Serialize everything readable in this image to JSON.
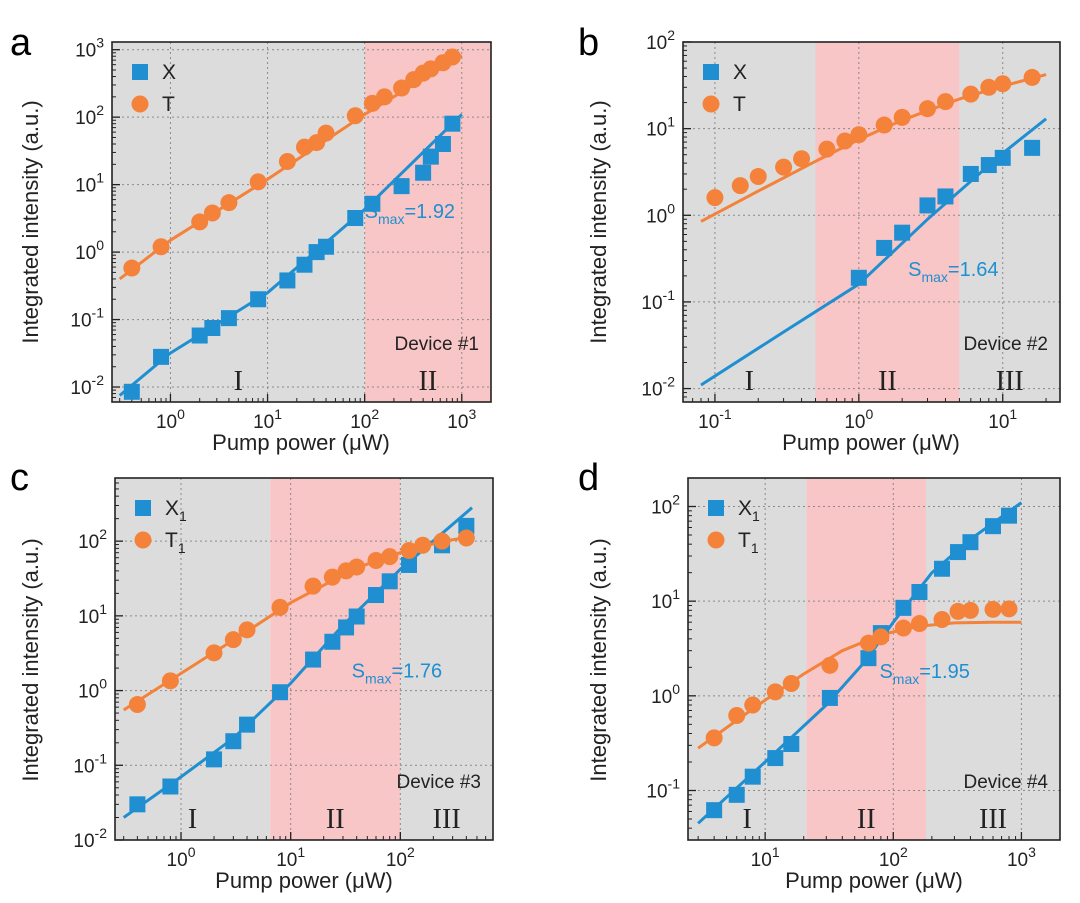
{
  "colors": {
    "X": "#1f8fd1",
    "T": "#f4823a",
    "gray": "#dcdcdc",
    "pink": "#f8c6c6"
  },
  "chart_data": [
    {
      "type": "scatter",
      "panel": "a",
      "xlabel": "Pump power (μW)",
      "ylabel": "Integrated intensity (a.u.)",
      "xscale": "log",
      "yscale": "log",
      "xlim": [
        0.25,
        2000
      ],
      "ylim": [
        0.006,
        1300
      ],
      "xtick_exps": [
        0,
        1,
        2,
        3
      ],
      "ytick_exps": [
        -2,
        -1,
        0,
        1,
        2,
        3
      ],
      "grid": true,
      "legend_position": "top-left",
      "regions": [
        {
          "label": "I",
          "from": 0.25,
          "to": 100,
          "fill": "gray"
        },
        {
          "label": "II",
          "from": 100,
          "to": 2000,
          "fill": "pink"
        }
      ],
      "device": "Device #1",
      "slope": {
        "sub": "max",
        "value": "=1.92",
        "x": 100,
        "y": 3.2
      },
      "series": [
        {
          "name": "X",
          "sub": "",
          "marker": "square",
          "color": "X",
          "x": [
            0.4,
            0.8,
            2,
            2.7,
            4,
            8,
            16,
            24,
            32,
            40,
            80,
            120,
            240,
            400,
            480,
            640,
            800
          ],
          "y": [
            0.0085,
            0.028,
            0.058,
            0.075,
            0.105,
            0.2,
            0.38,
            0.65,
            1.0,
            1.2,
            3.2,
            5.2,
            9.5,
            15,
            26,
            40,
            80
          ],
          "fit_x": [
            0.3,
            1,
            10,
            100,
            1000
          ],
          "fit_y": [
            0.0075,
            0.032,
            0.25,
            4.3,
            110
          ]
        },
        {
          "name": "T",
          "sub": "",
          "marker": "circle",
          "color": "T",
          "x": [
            0.4,
            0.8,
            2,
            2.7,
            4,
            8,
            16,
            24,
            32,
            40,
            80,
            120,
            160,
            240,
            320,
            400,
            480,
            640,
            800
          ],
          "y": [
            0.58,
            1.2,
            2.8,
            3.8,
            5.4,
            11,
            22,
            36,
            42,
            58,
            105,
            160,
            200,
            270,
            360,
            450,
            520,
            640,
            780
          ],
          "fit_x": [
            0.3,
            1,
            10,
            100,
            1000
          ],
          "fit_y": [
            0.4,
            1.5,
            12,
            110,
            820
          ]
        }
      ]
    },
    {
      "type": "scatter",
      "panel": "b",
      "xlabel": "Pump power (μW)",
      "ylabel": "Integrated intensity (a.u.)",
      "xscale": "log",
      "yscale": "log",
      "xlim": [
        0.06,
        25
      ],
      "ylim": [
        0.007,
        100
      ],
      "xtick_exps": [
        -1,
        0,
        1
      ],
      "ytick_exps": [
        -2,
        -1,
        0,
        1,
        2
      ],
      "grid": true,
      "legend_position": "top-left",
      "regions": [
        {
          "label": "I",
          "from": 0.06,
          "to": 0.5,
          "fill": "gray"
        },
        {
          "label": "II",
          "from": 0.5,
          "to": 5,
          "fill": "pink"
        },
        {
          "label": "III",
          "from": 5,
          "to": 25,
          "fill": "gray"
        }
      ],
      "device": "Device #2",
      "slope": {
        "sub": "max",
        "value": "=1.64",
        "x": 2.2,
        "y": 0.2
      },
      "series": [
        {
          "name": "X",
          "sub": "",
          "marker": "square",
          "color": "X",
          "x": [
            1,
            1.5,
            2,
            3,
            4,
            6,
            8,
            10,
            16
          ],
          "y": [
            0.19,
            0.42,
            0.63,
            1.3,
            1.65,
            3,
            3.8,
            4.6,
            6
          ],
          "fit_x": [
            0.08,
            0.3,
            1,
            3,
            10,
            20
          ],
          "fit_y": [
            0.011,
            0.045,
            0.16,
            0.9,
            5.2,
            13
          ]
        },
        {
          "name": "T",
          "sub": "",
          "marker": "circle",
          "color": "T",
          "x": [
            0.1,
            0.15,
            0.2,
            0.3,
            0.4,
            0.6,
            0.8,
            1,
            1.5,
            2,
            3,
            4,
            6,
            8,
            10,
            16
          ],
          "y": [
            1.6,
            2.2,
            2.8,
            3.6,
            4.5,
            5.8,
            7.2,
            8.5,
            11,
            13.5,
            17,
            20.5,
            25,
            30,
            33,
            39
          ],
          "fit_x": [
            0.08,
            0.2,
            0.5,
            1,
            2,
            5,
            10,
            20
          ],
          "fit_y": [
            0.85,
            1.9,
            4.2,
            7.5,
            12.5,
            22,
            31,
            42
          ]
        }
      ]
    },
    {
      "type": "scatter",
      "panel": "c",
      "xlabel": "Pump power (μW)",
      "ylabel": "Integrated intensity (a.u.)",
      "xscale": "log",
      "yscale": "log",
      "xlim": [
        0.25,
        700
      ],
      "ylim": [
        0.01,
        700
      ],
      "xtick_exps": [
        0,
        1,
        2
      ],
      "ytick_exps": [
        -2,
        -1,
        0,
        1,
        2
      ],
      "grid": true,
      "legend_position": "top-left",
      "regions": [
        {
          "label": "I",
          "from": 0.25,
          "to": 6.5,
          "fill": "gray"
        },
        {
          "label": "II",
          "from": 6.5,
          "to": 100,
          "fill": "pink"
        },
        {
          "label": "III",
          "from": 100,
          "to": 700,
          "fill": "gray"
        }
      ],
      "device": "Device #3",
      "slope": {
        "sub": "max",
        "value": "=1.76",
        "x": 36,
        "y": 1.5
      },
      "series": [
        {
          "name": "X",
          "sub": "1",
          "marker": "square",
          "color": "X",
          "x": [
            0.4,
            0.8,
            2,
            3,
            4,
            8,
            16,
            24,
            32,
            40,
            60,
            80,
            120,
            240,
            400
          ],
          "y": [
            0.03,
            0.052,
            0.12,
            0.21,
            0.35,
            0.95,
            2.6,
            4.5,
            7,
            9.8,
            19,
            29,
            48,
            88,
            160
          ],
          "fit_x": [
            0.3,
            1,
            3,
            10,
            30,
            100,
            450
          ],
          "fit_y": [
            0.02,
            0.07,
            0.23,
            1.25,
            7.5,
            42,
            280
          ]
        },
        {
          "name": "T",
          "sub": "1",
          "marker": "circle",
          "color": "T",
          "x": [
            0.4,
            0.8,
            2,
            3,
            4,
            8,
            16,
            24,
            32,
            40,
            60,
            80,
            120,
            160,
            240,
            400
          ],
          "y": [
            0.65,
            1.35,
            3.2,
            4.8,
            6.5,
            13,
            25,
            33,
            40,
            45,
            55,
            62,
            75,
            88,
            100,
            110
          ],
          "fit_x": [
            0.3,
            1,
            4,
            10,
            40,
            100,
            250,
            450
          ],
          "fit_y": [
            0.55,
            1.7,
            6.2,
            15,
            44,
            70,
            100,
            115
          ]
        }
      ]
    },
    {
      "type": "scatter",
      "panel": "d",
      "xlabel": "Pump power (μW)",
      "ylabel": "Integrated intensity (a.u.)",
      "xscale": "log",
      "yscale": "log",
      "xlim": [
        2.5,
        2000
      ],
      "ylim": [
        0.03,
        200
      ],
      "xtick_exps": [
        1,
        2,
        3
      ],
      "ytick_exps": [
        -1,
        0,
        1,
        2
      ],
      "grid": true,
      "legend_position": "top-left",
      "regions": [
        {
          "label": "I",
          "from": 2.5,
          "to": 21,
          "fill": "gray"
        },
        {
          "label": "II",
          "from": 21,
          "to": 180,
          "fill": "pink"
        },
        {
          "label": "III",
          "from": 180,
          "to": 2000,
          "fill": "gray"
        }
      ],
      "device": "Device #4",
      "slope": {
        "sub": "max",
        "value": "=1.95",
        "x": 78,
        "y": 1.55
      },
      "series": [
        {
          "name": "X",
          "sub": "1",
          "marker": "square",
          "color": "X",
          "x": [
            4,
            6,
            8,
            12,
            16,
            32,
            64,
            80,
            120,
            160,
            240,
            320,
            400,
            600,
            800
          ],
          "y": [
            0.062,
            0.09,
            0.14,
            0.22,
            0.31,
            0.95,
            2.5,
            4.6,
            8.5,
            12.5,
            22,
            33,
            42,
            62,
            80
          ],
          "fit_x": [
            3,
            10,
            30,
            60,
            100,
            200,
            400,
            1000
          ],
          "fit_y": [
            0.045,
            0.2,
            0.8,
            2.3,
            6,
            20,
            45,
            110
          ]
        },
        {
          "name": "T",
          "sub": "1",
          "marker": "circle",
          "color": "T",
          "x": [
            4,
            6,
            8,
            12,
            16,
            32,
            64,
            80,
            120,
            160,
            240,
            320,
            400,
            600,
            800
          ],
          "y": [
            0.36,
            0.62,
            0.8,
            1.1,
            1.35,
            2.1,
            3.6,
            4.2,
            5.2,
            5.8,
            6.4,
            7.8,
            8,
            8.2,
            8.3
          ],
          "fit_x": [
            3,
            6,
            10,
            20,
            40,
            80,
            150,
            300,
            600,
            1000
          ],
          "fit_y": [
            0.28,
            0.55,
            0.9,
            1.7,
            3,
            4.4,
            5.4,
            5.9,
            6,
            6
          ]
        }
      ]
    }
  ]
}
